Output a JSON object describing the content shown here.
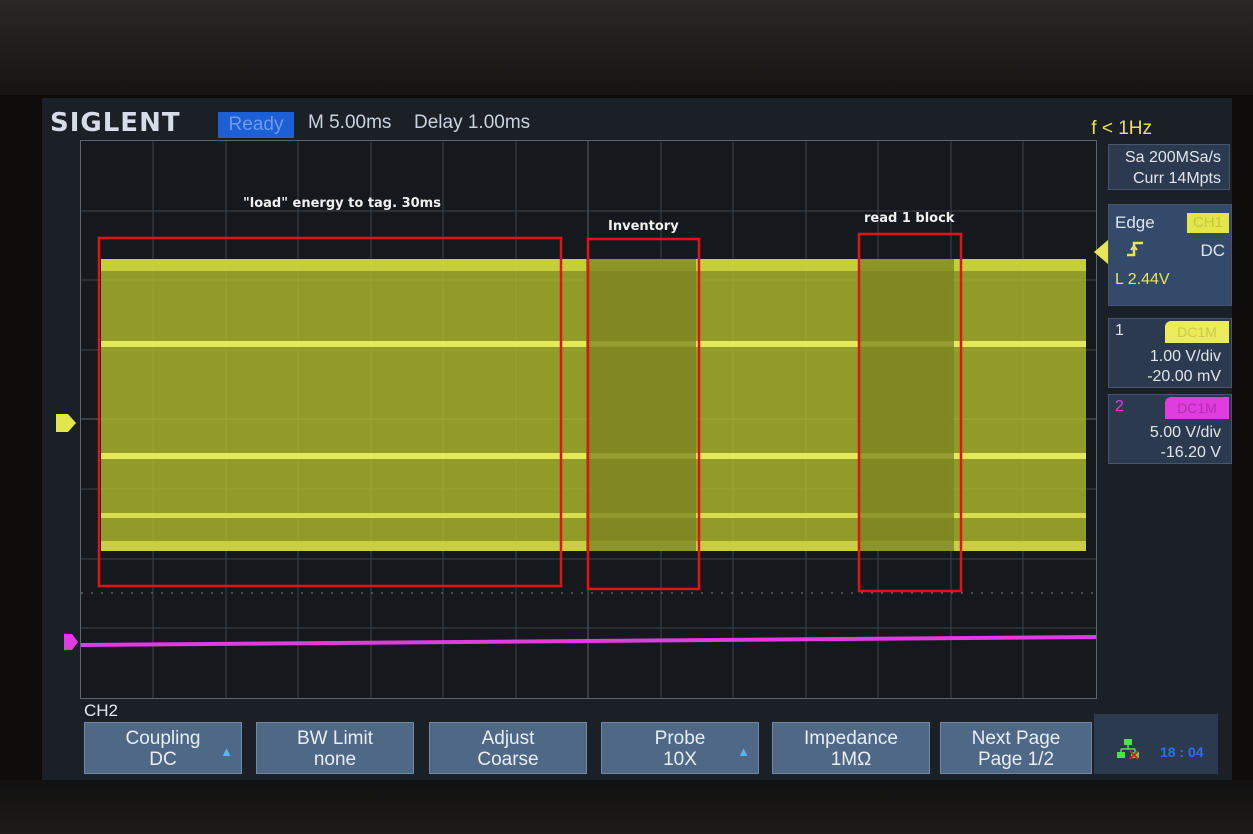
{
  "header": {
    "brand": "SIGLENT",
    "status": "Ready",
    "timebase": "M 5.00ms",
    "delay": "Delay 1.00ms",
    "frequency": "f < 1Hz"
  },
  "acquisition": {
    "sample_rate": "Sa 200MSa/s",
    "memory": "Curr 14Mpts"
  },
  "trigger": {
    "type": "Edge",
    "source": "CH1",
    "coupling": "DC",
    "level": "L  2.44V"
  },
  "channels": [
    {
      "number": "1",
      "coupling": "DC1M",
      "scale": "1.00 V/div",
      "offset": "-20.00 mV",
      "color": "#d9e63a"
    },
    {
      "number": "2",
      "coupling": "DC1M",
      "scale": "5.00 V/div",
      "offset": "-16.20 V",
      "color": "#e03ce0"
    }
  ],
  "menu": {
    "channel": "CH2",
    "softkeys": [
      {
        "line1": "Coupling",
        "line2": "DC",
        "has_arrow": true
      },
      {
        "line1": "BW Limit",
        "line2": "none",
        "has_arrow": false
      },
      {
        "line1": "Adjust",
        "line2": "Coarse",
        "has_arrow": false
      },
      {
        "line1": "Probe",
        "line2": "10X",
        "has_arrow": true
      },
      {
        "line1": "Impedance",
        "line2": "1MΩ",
        "has_arrow": false
      },
      {
        "line1": "Next Page",
        "line2": "Page 1/2",
        "has_arrow": false
      }
    ]
  },
  "status_bar": {
    "time": "18 : 04"
  },
  "annotations": [
    {
      "label": "\"load\" energy to tag. 30ms"
    },
    {
      "label": "Inventory"
    },
    {
      "label": "read 1 block"
    }
  ],
  "colors": {
    "ch1": "#d9e63a",
    "ch2": "#e03ce0",
    "annotation_box": "#e01414",
    "accent": "#1d5fd4"
  }
}
